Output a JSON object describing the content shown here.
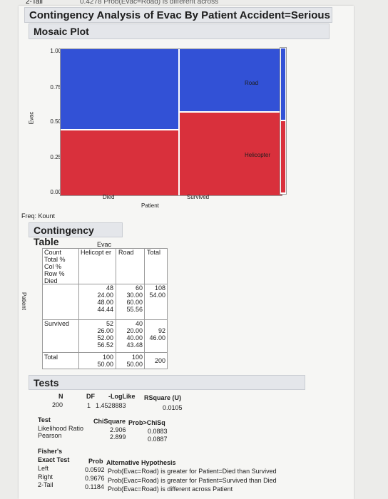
{
  "top": {
    "left": "2-Tail",
    "right": "0.4278  Prob(Evac=Road) is different across"
  },
  "title": "Contingency Analysis of Evac By Patient Accident=Serious",
  "mosaic": {
    "header": "Mosaic Plot",
    "y_label": "Evac",
    "x_label": "Patient",
    "y_ticks": [
      "1.00",
      "0.75",
      "0.50",
      "0.25",
      "0.00"
    ],
    "x_categories": [
      "Died",
      "Survived"
    ],
    "legend": [
      "Road",
      "Helicopter"
    ],
    "colors": {
      "road": "#3251d6",
      "helicopter": "#d9303c"
    },
    "chart_data": {
      "type": "mosaic",
      "categories": [
        "Died",
        "Survived"
      ],
      "widths": [
        0.54,
        0.46
      ],
      "series": [
        {
          "name": "Helicopter",
          "values": [
            0.4444,
            0.5652
          ]
        },
        {
          "name": "Road",
          "values": [
            0.5556,
            0.4348
          ]
        }
      ],
      "ylim": [
        0,
        1
      ],
      "marginal": {
        "Helicopter": 0.5,
        "Road": 0.5
      }
    }
  },
  "freq": "Freq: Kount",
  "ct": {
    "header": "Contingency Table",
    "evac": "Evac",
    "patient": "Patient",
    "stat_labels": [
      "Count",
      "Total %",
      "Col %",
      "Row %"
    ],
    "col_heads": [
      "Helicopt er",
      "Road",
      "Total"
    ],
    "rows": [
      {
        "label": "Died",
        "heli": [
          "48",
          "24.00",
          "48.00",
          "44.44"
        ],
        "road": [
          "60",
          "30.00",
          "60.00",
          "55.56"
        ],
        "total": [
          "108",
          "54.00"
        ]
      },
      {
        "label": "Survived",
        "heli": [
          "52",
          "26.00",
          "52.00",
          "56.52"
        ],
        "road": [
          "40",
          "20.00",
          "40.00",
          "43.48"
        ],
        "total": [
          "92",
          "46.00"
        ]
      }
    ],
    "total_row": {
      "label": "Total",
      "heli": [
        "100",
        "50.00"
      ],
      "road": [
        "100",
        "50.00"
      ],
      "total": "200"
    }
  },
  "tests": {
    "header": "Tests",
    "col1": {
      "h": [
        "N",
        "DF",
        "-LogLike",
        "RSquare (U)"
      ],
      "v": [
        "200",
        "1",
        "1.4528883",
        "0.0105"
      ]
    },
    "col2": {
      "h": [
        "Test",
        "ChiSquare",
        "Prob>ChiSq"
      ],
      "rows": [
        [
          "Likelihood Ratio",
          "2.906",
          "0.0883"
        ],
        [
          "Pearson",
          "2.899",
          "0.0887"
        ]
      ]
    },
    "fisher": {
      "title1": "Fisher's",
      "title2": "Exact Test",
      "h1": "Prob",
      "h2": "Alternative Hypothesis",
      "rows": [
        [
          "Left",
          "0.0592",
          "Prob(Evac=Road) is greater for Patient=Died than Survived"
        ],
        [
          "Right",
          "0.9676",
          "Prob(Evac=Road) is greater for Patient=Survived than Died"
        ],
        [
          "2-Tail",
          "0.1184",
          "Prob(Evac=Road) is different across Patient"
        ]
      ]
    }
  }
}
